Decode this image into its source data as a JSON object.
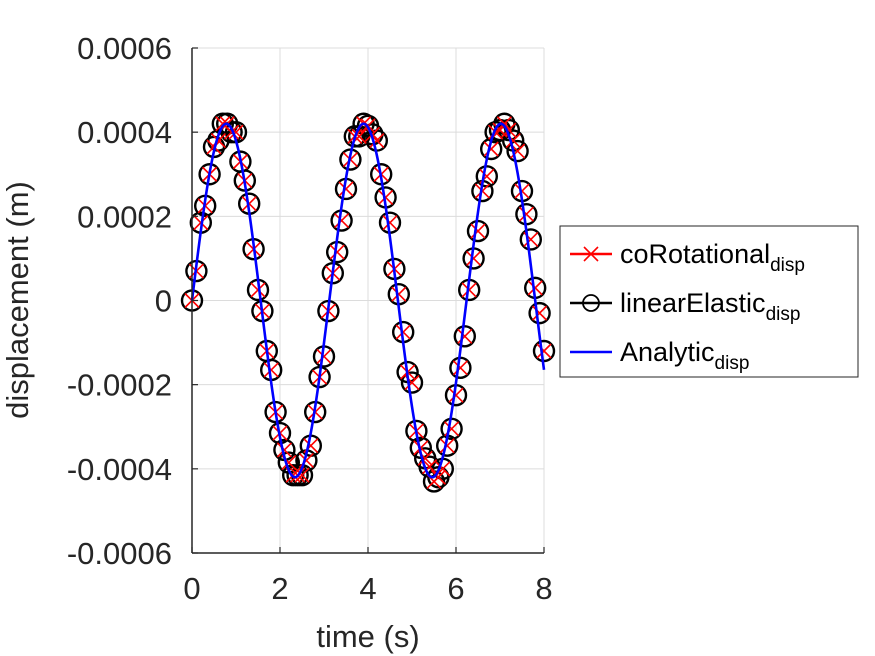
{
  "chart_data": {
    "type": "line",
    "xlabel": "time (s)",
    "ylabel": "displacement (m)",
    "xlim": [
      0,
      8
    ],
    "ylim": [
      -0.0006,
      0.0006
    ],
    "xticks": [
      0,
      2,
      4,
      6,
      8
    ],
    "xtick_labels": [
      "0",
      "2",
      "4",
      "6",
      "8"
    ],
    "yticks": [
      -0.0006,
      -0.0004,
      -0.0002,
      0,
      0.0002,
      0.0004,
      0.0006
    ],
    "ytick_labels": [
      "-0.0006",
      "-0.0004",
      "-0.0002",
      "0",
      "0.0002",
      "0.0004",
      "0.0006"
    ],
    "grid": true,
    "legend_position": "outside-right",
    "series": [
      {
        "name_main": "coRotational",
        "name_sub": "disp",
        "color": "#ff0000",
        "marker": "x",
        "x": [
          0.0,
          0.1,
          0.2,
          0.3,
          0.4,
          0.5,
          0.6,
          0.7,
          0.8,
          0.9,
          1.0,
          1.1,
          1.2,
          1.3,
          1.4,
          1.5,
          1.6,
          1.7,
          1.8,
          1.9,
          2.0,
          2.1,
          2.2,
          2.3,
          2.4,
          2.5,
          2.6,
          2.7,
          2.8,
          2.9,
          3.0,
          3.1,
          3.2,
          3.3,
          3.4,
          3.5,
          3.6,
          3.7,
          3.8,
          3.9,
          4.0,
          4.1,
          4.2,
          4.3,
          4.4,
          4.5,
          4.6,
          4.7,
          4.8,
          4.9,
          5.0,
          5.1,
          5.2,
          5.3,
          5.4,
          5.5,
          5.6,
          5.7,
          5.8,
          5.9,
          6.0,
          6.1,
          6.2,
          6.3,
          6.4,
          6.5,
          6.6,
          6.7,
          6.8,
          6.9,
          7.0,
          7.1,
          7.2,
          7.3,
          7.4,
          7.5,
          7.6,
          7.7,
          7.8,
          7.9,
          8.0
        ],
        "y": [
          0.0,
          7e-05,
          0.000185,
          0.000225,
          0.0003,
          0.000365,
          0.00038,
          0.00042,
          0.00042,
          0.0004,
          0.0004,
          0.00033,
          0.000285,
          0.00023,
          0.000122,
          2.5e-05,
          -2.5e-05,
          -0.00012,
          -0.000165,
          -0.000265,
          -0.000315,
          -0.000355,
          -0.000385,
          -0.000415,
          -0.000415,
          -0.000415,
          -0.00038,
          -0.000345,
          -0.000265,
          -0.000182,
          -0.000133,
          -2.5e-05,
          6.5e-05,
          0.000115,
          0.00019,
          0.000265,
          0.000335,
          0.00039,
          0.00039,
          0.00042,
          0.000415,
          0.000395,
          0.00038,
          0.0003,
          0.000245,
          0.000185,
          7.5e-05,
          1.5e-05,
          -7.5e-05,
          -0.00017,
          -0.000195,
          -0.00031,
          -0.00035,
          -0.000375,
          -0.000395,
          -0.00043,
          -0.00042,
          -0.0004,
          -0.000345,
          -0.000305,
          -0.000225,
          -0.00016,
          -8.5e-05,
          2.5e-05,
          0.0001,
          0.000165,
          0.00026,
          0.000295,
          0.00036,
          0.0004,
          0.000405,
          0.00042,
          0.000405,
          0.00038,
          0.000355,
          0.00026,
          0.000205,
          0.000145,
          3e-05,
          -3e-05,
          -0.00012
        ]
      },
      {
        "name_main": "linearElastic",
        "name_sub": "disp",
        "color": "#000000",
        "marker": "o",
        "x": [
          0.0,
          0.1,
          0.2,
          0.3,
          0.4,
          0.5,
          0.6,
          0.7,
          0.8,
          0.9,
          1.0,
          1.1,
          1.2,
          1.3,
          1.4,
          1.5,
          1.6,
          1.7,
          1.8,
          1.9,
          2.0,
          2.1,
          2.2,
          2.3,
          2.4,
          2.5,
          2.6,
          2.7,
          2.8,
          2.9,
          3.0,
          3.1,
          3.2,
          3.3,
          3.4,
          3.5,
          3.6,
          3.7,
          3.8,
          3.9,
          4.0,
          4.1,
          4.2,
          4.3,
          4.4,
          4.5,
          4.6,
          4.7,
          4.8,
          4.9,
          5.0,
          5.1,
          5.2,
          5.3,
          5.4,
          5.5,
          5.6,
          5.7,
          5.8,
          5.9,
          6.0,
          6.1,
          6.2,
          6.3,
          6.4,
          6.5,
          6.6,
          6.7,
          6.8,
          6.9,
          7.0,
          7.1,
          7.2,
          7.3,
          7.4,
          7.5,
          7.6,
          7.7,
          7.8,
          7.9,
          8.0
        ],
        "y": [
          0.0,
          7e-05,
          0.000185,
          0.000225,
          0.0003,
          0.000365,
          0.00038,
          0.00042,
          0.00042,
          0.0004,
          0.0004,
          0.00033,
          0.000285,
          0.00023,
          0.000122,
          2.5e-05,
          -2.5e-05,
          -0.00012,
          -0.000165,
          -0.000265,
          -0.000315,
          -0.000355,
          -0.000385,
          -0.000415,
          -0.000415,
          -0.000415,
          -0.00038,
          -0.000345,
          -0.000265,
          -0.000182,
          -0.000133,
          -2.5e-05,
          6.5e-05,
          0.000115,
          0.00019,
          0.000265,
          0.000335,
          0.00039,
          0.00039,
          0.00042,
          0.000415,
          0.000395,
          0.00038,
          0.0003,
          0.000245,
          0.000185,
          7.5e-05,
          1.5e-05,
          -7.5e-05,
          -0.00017,
          -0.000195,
          -0.00031,
          -0.00035,
          -0.000375,
          -0.000395,
          -0.00043,
          -0.00042,
          -0.0004,
          -0.000345,
          -0.000305,
          -0.000225,
          -0.00016,
          -8.5e-05,
          2.5e-05,
          0.0001,
          0.000165,
          0.00026,
          0.000295,
          0.00036,
          0.0004,
          0.000405,
          0.00042,
          0.000405,
          0.00038,
          0.000355,
          0.00026,
          0.000205,
          0.000145,
          3e-05,
          -3e-05,
          -0.00012
        ]
      },
      {
        "name_main": "Analytic",
        "name_sub": "disp",
        "color": "#0000ff",
        "marker": "none",
        "amplitude": 0.00042,
        "period": 3.12,
        "x_range": [
          0,
          8
        ]
      }
    ]
  }
}
